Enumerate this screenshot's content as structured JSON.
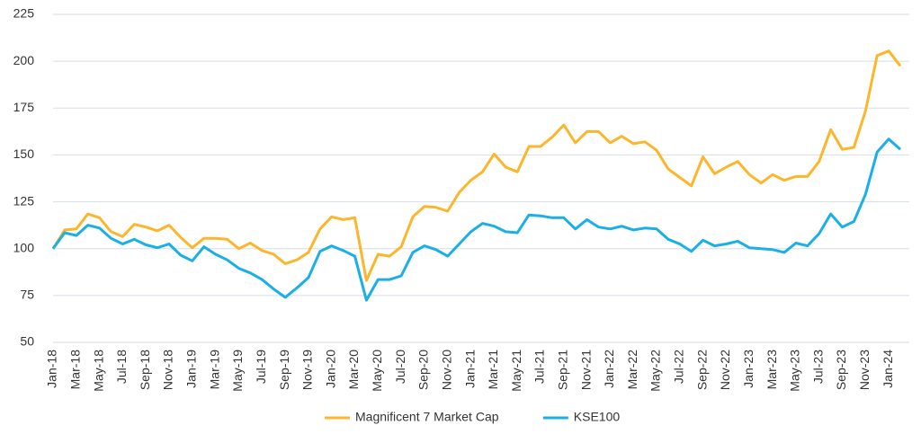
{
  "chart_data": {
    "type": "line",
    "categories": [
      "Jan-18",
      null,
      "Mar-18",
      null,
      "May-18",
      null,
      "Jul-18",
      null,
      "Sep-18",
      null,
      "Nov-18",
      null,
      "Jan-19",
      null,
      "Mar-19",
      null,
      "May-19",
      null,
      "Jul-19",
      null,
      "Sep-19",
      null,
      "Nov-19",
      null,
      "Jan-20",
      null,
      "Mar-20",
      null,
      "May-20",
      null,
      "Jul-20",
      null,
      "Sep-20",
      null,
      "Nov-20",
      null,
      "Jan-21",
      null,
      "Mar-21",
      null,
      "May-21",
      null,
      "Jul-21",
      null,
      "Sep-21",
      null,
      "Nov-21",
      null,
      "Jan-22",
      null,
      "Mar-22",
      null,
      "May-22",
      null,
      "Jul-22",
      null,
      "Sep-22",
      null,
      "Nov-22",
      null,
      "Jan-23",
      null,
      "Mar-23",
      null,
      "May-23",
      null,
      "Jul-23",
      null,
      "Sep-23",
      null,
      "Nov-23",
      null,
      "Jan-24",
      null
    ],
    "series": [
      {
        "name": "Magnificent 7 Market Cap",
        "color": "#fbb62b",
        "values": [
          100,
          110,
          110.5,
          118.5,
          116.5,
          109,
          106.5,
          113,
          111.5,
          109.5,
          112.5,
          106,
          100.5,
          105.5,
          105.5,
          105,
          100,
          103,
          99,
          97,
          92,
          94,
          98,
          110.5,
          117,
          115.5,
          116.5,
          83,
          97,
          96,
          101,
          117,
          122.5,
          122,
          120,
          130,
          136.5,
          141,
          150.5,
          143.5,
          141,
          154.5,
          154.5,
          159.5,
          166,
          156.5,
          162.5,
          162.5,
          156.5,
          160,
          156,
          157,
          152.5,
          142.5,
          138,
          133.5,
          149,
          140,
          143.5,
          146.5,
          139.5,
          135,
          139.5,
          136.5,
          138.5,
          138.5,
          146.5,
          163.5,
          153,
          154,
          173.5,
          203,
          205.5,
          197.5
        ]
      },
      {
        "name": "KSE100",
        "color": "#1aafe6",
        "values": [
          100,
          108.5,
          107,
          112.5,
          111,
          105.5,
          102.5,
          105,
          102,
          100.5,
          102.5,
          96.5,
          93.5,
          101,
          97,
          94,
          89.5,
          87,
          83.5,
          78.5,
          74,
          79,
          84.5,
          98.5,
          101.5,
          99,
          96,
          72.5,
          83.5,
          83.5,
          85.5,
          98,
          101.5,
          99.5,
          96,
          102.5,
          109,
          113.5,
          112,
          109,
          108.5,
          118,
          117.5,
          116.5,
          116.5,
          110.5,
          115.5,
          111.5,
          110.5,
          112,
          110,
          111,
          110.5,
          105,
          102.5,
          98.5,
          104.5,
          101.5,
          102.5,
          104,
          100.5,
          100,
          99.5,
          98,
          103,
          101.5,
          108,
          118.5,
          111.5,
          114.5,
          129,
          151.5,
          158.5,
          153
        ]
      }
    ],
    "ylim": [
      50,
      225
    ],
    "yticks": [
      50,
      75,
      100,
      125,
      150,
      175,
      200,
      225
    ],
    "grid": true,
    "legend": "bottom"
  }
}
